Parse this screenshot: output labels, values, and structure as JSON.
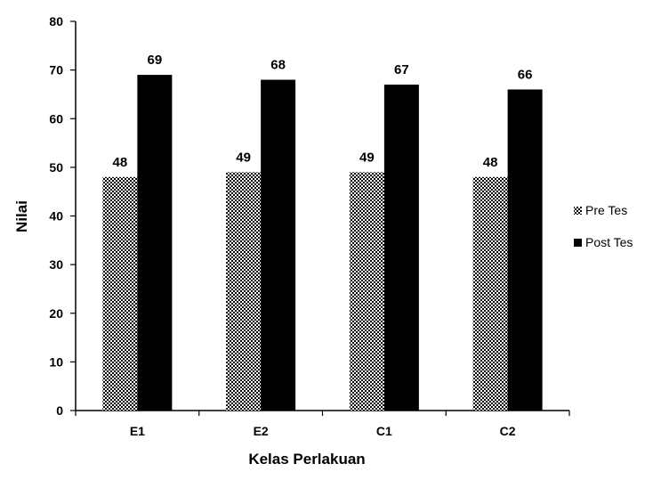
{
  "chart_data": {
    "type": "bar",
    "title": "",
    "xlabel": "Kelas Perlakuan",
    "ylabel": "Nilai",
    "categories": [
      "E1",
      "E2",
      "C1",
      "C2"
    ],
    "series": [
      {
        "name": "Pre Tes",
        "values": [
          48,
          49,
          49,
          48
        ],
        "fill": "checker",
        "color": "#000000"
      },
      {
        "name": "Post Tes",
        "values": [
          69,
          68,
          67,
          66
        ],
        "fill": "solid",
        "color": "#000000"
      }
    ],
    "ylim": [
      0,
      80
    ],
    "yticks": [
      0,
      10,
      20,
      30,
      40,
      50,
      60,
      70,
      80
    ],
    "grid": false,
    "legend": "right"
  }
}
